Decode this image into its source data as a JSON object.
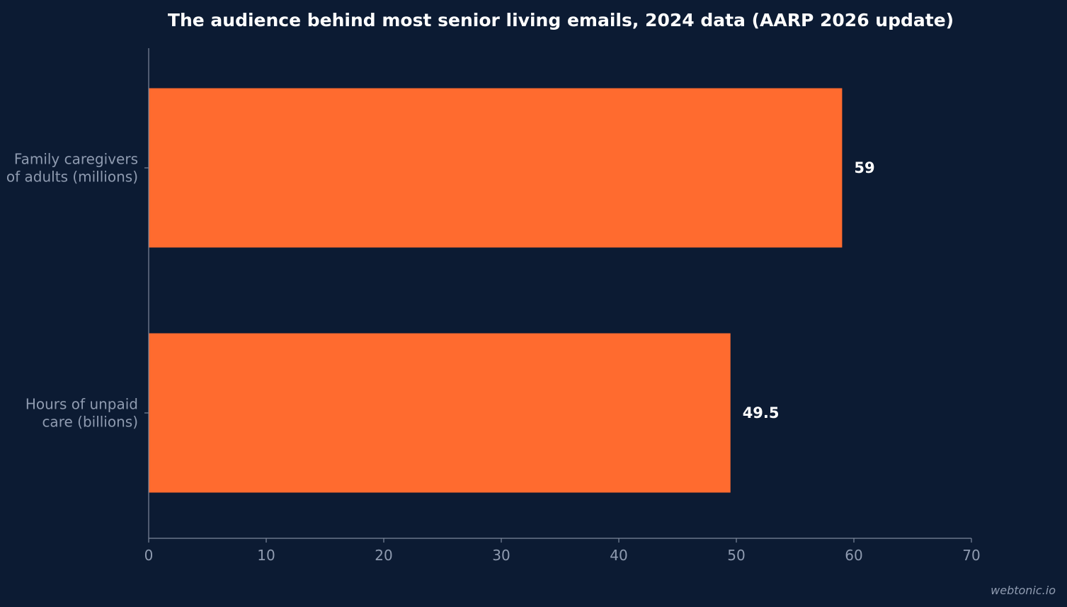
{
  "chart_data": {
    "type": "bar",
    "orientation": "horizontal",
    "title": "The audience behind most senior living emails, 2024 data (AARP 2026 update)",
    "categories": [
      "Family caregivers\nof adults (millions)",
      "Hours of unpaid\ncare (billions)"
    ],
    "values": [
      59,
      49.5
    ],
    "value_labels": [
      "59",
      "49.5"
    ],
    "xlim": [
      0,
      70
    ],
    "xticks": [
      0,
      10,
      20,
      30,
      40,
      50,
      60,
      70
    ],
    "xlabel": "",
    "ylabel": "",
    "grid": false,
    "bar_color": "#ff6b2f"
  },
  "colors": {
    "background": "#0c1b33",
    "axis": "#7d889c",
    "text_muted": "#8f9bb0",
    "text_strong": "#ffffff"
  },
  "watermark": "webtonic.io"
}
